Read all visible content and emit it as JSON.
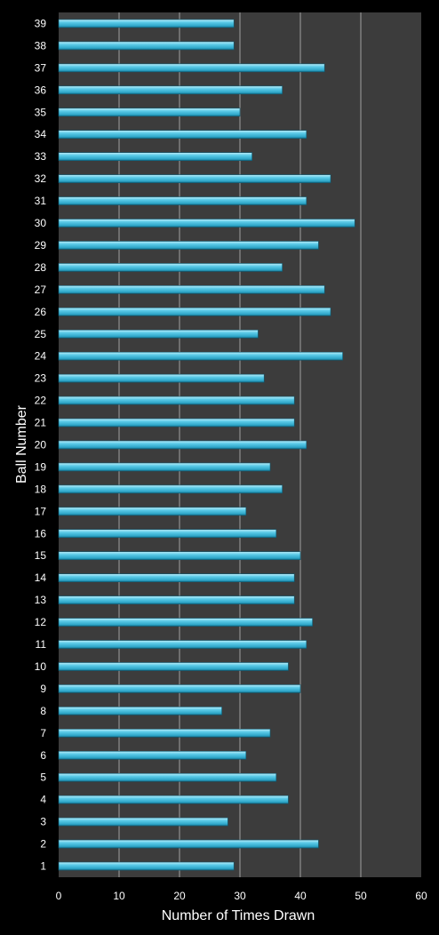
{
  "chart_data": {
    "type": "bar",
    "orientation": "horizontal",
    "title": "",
    "xlabel": "Number of Times Drawn",
    "ylabel": "Ball Number",
    "xlim": [
      0,
      60
    ],
    "x_ticks": [
      0,
      10,
      20,
      30,
      40,
      50,
      60
    ],
    "grid": true,
    "legend": "none",
    "categories": [
      "1",
      "2",
      "3",
      "4",
      "5",
      "6",
      "7",
      "8",
      "9",
      "10",
      "11",
      "12",
      "13",
      "14",
      "15",
      "16",
      "17",
      "18",
      "19",
      "20",
      "21",
      "22",
      "23",
      "24",
      "25",
      "26",
      "27",
      "28",
      "29",
      "30",
      "31",
      "32",
      "33",
      "34",
      "35",
      "36",
      "37",
      "38",
      "39"
    ],
    "values": [
      29,
      43,
      28,
      38,
      36,
      31,
      35,
      27,
      40,
      38,
      41,
      42,
      39,
      39,
      40,
      36,
      31,
      37,
      35,
      41,
      39,
      39,
      34,
      47,
      33,
      45,
      44,
      37,
      43,
      49,
      41,
      45,
      32,
      41,
      30,
      37,
      44,
      29,
      29
    ],
    "colors": {
      "background": "#000000",
      "plot_area": "#3c3c3c",
      "gridline": "#a0a0a0",
      "bar": "#3cb8dc",
      "text": "#ffffff"
    }
  }
}
